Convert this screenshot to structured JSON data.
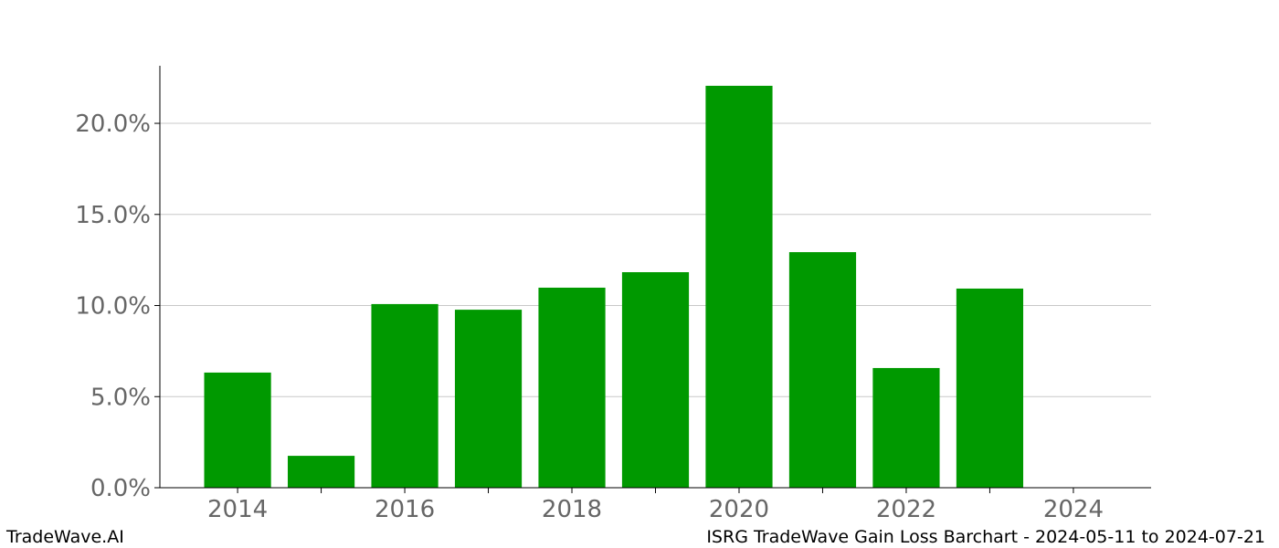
{
  "chart_data": {
    "type": "bar",
    "x": [
      2014,
      2015,
      2016,
      2017,
      2018,
      2019,
      2020,
      2021,
      2022,
      2023
    ],
    "values": [
      6.32,
      1.75,
      10.08,
      9.77,
      10.98,
      11.83,
      22.06,
      12.93,
      6.57,
      10.93
    ],
    "color": "#009900",
    "bar_width": 0.8,
    "xlim": [
      2013.07,
      2024.93
    ],
    "xticks": [
      2014,
      2016,
      2018,
      2020,
      2022,
      2024
    ],
    "xminorticks": [
      2015,
      2017,
      2019,
      2021,
      2023
    ],
    "ylim": [
      0,
      23.16
    ],
    "yticks": [
      {
        "value": 0,
        "label": "0.0%"
      },
      {
        "value": 5,
        "label": "5.0%"
      },
      {
        "value": 10,
        "label": "10.0%"
      },
      {
        "value": 15,
        "label": "15.0%"
      },
      {
        "value": 20,
        "label": "20.0%"
      }
    ],
    "grid": true,
    "footer_left": "TradeWave.AI",
    "footer_right": "ISRG TradeWave Gain Loss Barchart - 2024-05-11 to 2024-07-21"
  }
}
